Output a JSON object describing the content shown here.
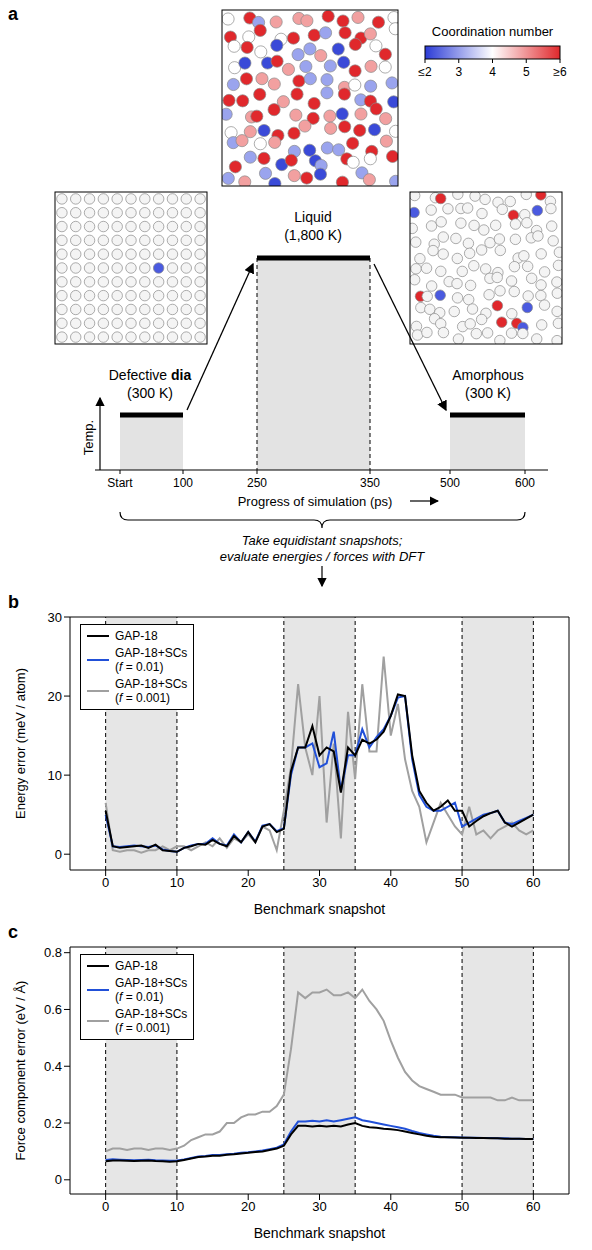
{
  "diagram": {
    "panel_label": "a",
    "colorbar": {
      "title": "Coordination number",
      "labels": [
        "≤2",
        "3",
        "4",
        "5",
        "≥6"
      ],
      "colors": [
        "#2b3bd6",
        "#ffffff",
        "#e0282c"
      ]
    },
    "stages": [
      {
        "name": "Defective",
        "bold_suffix": "dia",
        "condition": "(300 K)"
      },
      {
        "name": "Liquid",
        "condition": "(1,800 K)"
      },
      {
        "name": "Amorphous",
        "condition": "(300 K)"
      }
    ],
    "y_axis_label": "Temp.",
    "timeline_ticks": [
      "Start",
      "100",
      "250",
      "350",
      "500",
      "600"
    ],
    "x_axis_label": "Progress of simulation (ps)",
    "note": [
      "Take equidistant snapshots;",
      "evaluate energies / forces with DFT"
    ]
  },
  "chart_data": [
    {
      "panel_label": "b",
      "type": "line",
      "x_label": "Benchmark snapshot",
      "y_label": "Energy error (meV / atom)",
      "xlim": [
        -5,
        65
      ],
      "xticks": [
        0,
        10,
        20,
        30,
        40,
        50,
        60
      ],
      "ylim": [
        -2,
        30
      ],
      "yticks": [
        0,
        10,
        20,
        30
      ],
      "legend": "upper left",
      "shaded_x": [
        [
          0,
          10
        ],
        [
          25,
          35
        ],
        [
          50,
          60
        ]
      ],
      "x": [
        0,
        1,
        2,
        3,
        4,
        5,
        6,
        7,
        8,
        9,
        10,
        11,
        12,
        13,
        14,
        15,
        16,
        17,
        18,
        19,
        20,
        21,
        22,
        23,
        24,
        25,
        26,
        27,
        28,
        29,
        30,
        31,
        32,
        33,
        34,
        35,
        36,
        37,
        38,
        39,
        40,
        41,
        42,
        43,
        44,
        45,
        46,
        47,
        48,
        49,
        50,
        51,
        52,
        53,
        54,
        55,
        56,
        57,
        58,
        59,
        60
      ],
      "series": [
        {
          "name": "GAP-18",
          "color": "#000000",
          "values": [
            5.5,
            1.0,
            0.8,
            0.9,
            1.0,
            1.1,
            0.8,
            1.2,
            0.5,
            0.4,
            0.3,
            0.8,
            1.0,
            1.3,
            1.2,
            1.8,
            1.3,
            1.0,
            2.3,
            1.5,
            2.8,
            1.5,
            3.5,
            3.8,
            2.8,
            3.2,
            10.5,
            13.5,
            13.5,
            16.2,
            12.5,
            13.5,
            13.0,
            7.8,
            13.5,
            12.5,
            14.5,
            14.0,
            14.5,
            15.5,
            17.5,
            20.2,
            20.0,
            12.5,
            8.0,
            6.5,
            5.5,
            6.0,
            6.8,
            5.5,
            5.5,
            3.5,
            4.2,
            4.8,
            5.2,
            5.5,
            4.0,
            3.5,
            4.0,
            4.5,
            5.0
          ]
        },
        {
          "name": "GAP-18+SCs (f = 0.01)",
          "color": "#2150d8",
          "values": [
            5.0,
            1.0,
            0.9,
            1.0,
            1.1,
            1.0,
            0.9,
            1.1,
            0.6,
            0.4,
            0.3,
            0.8,
            1.1,
            1.3,
            1.3,
            2.0,
            1.3,
            1.1,
            2.5,
            1.5,
            2.8,
            1.6,
            3.6,
            3.8,
            2.9,
            3.3,
            10.0,
            13.5,
            13.5,
            14.0,
            11.0,
            11.5,
            15.5,
            8.0,
            12.5,
            12.5,
            15.8,
            13.5,
            14.8,
            15.8,
            17.5,
            19.8,
            20.0,
            12.0,
            7.5,
            6.0,
            5.5,
            5.5,
            6.0,
            6.5,
            3.5,
            4.0,
            4.5,
            5.0,
            5.2,
            5.5,
            4.0,
            3.8,
            4.2,
            4.6,
            5.0
          ]
        },
        {
          "name": "GAP-18+SCs (f = 0.001)",
          "color": "#a0a0a0",
          "values": [
            6.5,
            0.5,
            0.3,
            0.5,
            0.5,
            0.2,
            0.5,
            0.5,
            1.0,
            0.5,
            1.0,
            1.0,
            0.5,
            1.0,
            1.5,
            1.0,
            2.0,
            0.8,
            2.0,
            1.5,
            2.5,
            1.5,
            3.5,
            3.0,
            0.5,
            5.5,
            11.0,
            21.5,
            13.5,
            10.0,
            20.0,
            4.0,
            14.0,
            2.0,
            18.0,
            9.5,
            21.5,
            13.0,
            13.0,
            25.0,
            15.0,
            19.0,
            12.0,
            8.0,
            6.0,
            1.5,
            4.0,
            6.5,
            5.0,
            3.5,
            2.5,
            6.0,
            2.5,
            3.0,
            2.0,
            3.0,
            3.5,
            4.0,
            3.0,
            2.5,
            3.0
          ]
        }
      ]
    },
    {
      "panel_label": "c",
      "type": "line",
      "x_label": "Benchmark snapshot",
      "y_label": "Force component error (eV / Å)",
      "xlim": [
        -5,
        65
      ],
      "xticks": [
        0,
        10,
        20,
        30,
        40,
        50,
        60
      ],
      "ylim": [
        -0.05,
        0.82
      ],
      "yticks": [
        0,
        0.2,
        0.4,
        0.6,
        0.8
      ],
      "legend": "upper left",
      "shaded_x": [
        [
          0,
          10
        ],
        [
          25,
          35
        ],
        [
          50,
          60
        ]
      ],
      "x": [
        0,
        1,
        2,
        3,
        4,
        5,
        6,
        7,
        8,
        9,
        10,
        11,
        12,
        13,
        14,
        15,
        16,
        17,
        18,
        19,
        20,
        21,
        22,
        23,
        24,
        25,
        26,
        27,
        28,
        29,
        30,
        31,
        32,
        33,
        34,
        35,
        36,
        37,
        38,
        39,
        40,
        41,
        42,
        43,
        44,
        45,
        46,
        47,
        48,
        49,
        50,
        51,
        52,
        53,
        54,
        55,
        56,
        57,
        58,
        59,
        60
      ],
      "series": [
        {
          "name": "GAP-18",
          "color": "#000000",
          "values": [
            0.065,
            0.068,
            0.068,
            0.067,
            0.066,
            0.067,
            0.068,
            0.066,
            0.065,
            0.064,
            0.065,
            0.07,
            0.075,
            0.08,
            0.082,
            0.085,
            0.085,
            0.088,
            0.09,
            0.093,
            0.095,
            0.098,
            0.1,
            0.105,
            0.11,
            0.12,
            0.16,
            0.19,
            0.19,
            0.188,
            0.19,
            0.188,
            0.19,
            0.188,
            0.195,
            0.2,
            0.19,
            0.185,
            0.183,
            0.18,
            0.178,
            0.175,
            0.17,
            0.165,
            0.16,
            0.155,
            0.152,
            0.15,
            0.15,
            0.149,
            0.148,
            0.148,
            0.147,
            0.147,
            0.146,
            0.146,
            0.145,
            0.145,
            0.145,
            0.144,
            0.144
          ]
        },
        {
          "name": "GAP-18+SCs (f = 0.01)",
          "color": "#2150d8",
          "values": [
            0.07,
            0.072,
            0.071,
            0.07,
            0.069,
            0.07,
            0.071,
            0.069,
            0.068,
            0.067,
            0.068,
            0.072,
            0.077,
            0.082,
            0.084,
            0.087,
            0.087,
            0.09,
            0.092,
            0.095,
            0.097,
            0.1,
            0.103,
            0.108,
            0.113,
            0.125,
            0.17,
            0.205,
            0.205,
            0.208,
            0.205,
            0.21,
            0.205,
            0.21,
            0.215,
            0.22,
            0.21,
            0.205,
            0.2,
            0.195,
            0.19,
            0.185,
            0.18,
            0.172,
            0.165,
            0.16,
            0.155,
            0.152,
            0.15,
            0.15,
            0.149,
            0.148,
            0.148,
            0.147,
            0.147,
            0.146,
            0.146,
            0.145,
            0.145,
            0.144,
            0.144
          ]
        },
        {
          "name": "GAP-18+SCs (f = 0.001)",
          "color": "#a0a0a0",
          "values": [
            0.1,
            0.11,
            0.11,
            0.105,
            0.11,
            0.11,
            0.105,
            0.11,
            0.11,
            0.105,
            0.11,
            0.12,
            0.14,
            0.15,
            0.16,
            0.16,
            0.17,
            0.2,
            0.2,
            0.22,
            0.23,
            0.23,
            0.24,
            0.24,
            0.26,
            0.3,
            0.46,
            0.66,
            0.64,
            0.66,
            0.66,
            0.67,
            0.65,
            0.65,
            0.66,
            0.64,
            0.67,
            0.63,
            0.6,
            0.56,
            0.49,
            0.43,
            0.38,
            0.35,
            0.33,
            0.32,
            0.31,
            0.3,
            0.3,
            0.3,
            0.29,
            0.29,
            0.29,
            0.29,
            0.29,
            0.28,
            0.28,
            0.29,
            0.28,
            0.28,
            0.28
          ]
        }
      ]
    }
  ]
}
